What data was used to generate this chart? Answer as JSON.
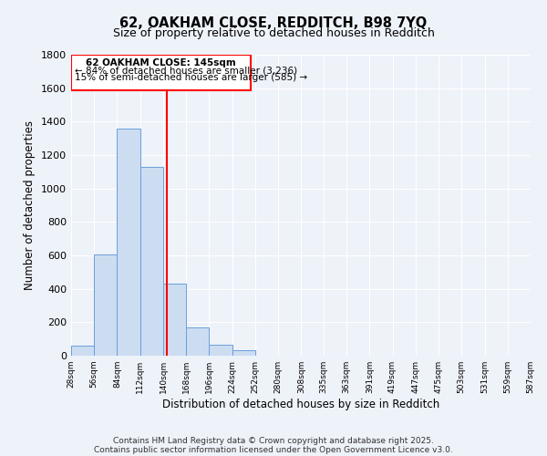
{
  "title_line1": "62, OAKHAM CLOSE, REDDITCH, B98 7YQ",
  "title_line2": "Size of property relative to detached houses in Redditch",
  "xlabel": "Distribution of detached houses by size in Redditch",
  "ylabel": "Number of detached properties",
  "bar_values": [
    60,
    605,
    1360,
    1130,
    430,
    170,
    65,
    35,
    0,
    0,
    0,
    0,
    0,
    0,
    0,
    0,
    0,
    0,
    0,
    0
  ],
  "bin_edges": [
    28,
    56,
    84,
    112,
    140,
    168,
    196,
    224,
    252,
    280,
    308,
    335,
    363,
    391,
    419,
    447,
    475,
    503,
    531,
    559,
    587
  ],
  "tick_labels": [
    "28sqm",
    "56sqm",
    "84sqm",
    "112sqm",
    "140sqm",
    "168sqm",
    "196sqm",
    "224sqm",
    "252sqm",
    "280sqm",
    "308sqm",
    "335sqm",
    "363sqm",
    "391sqm",
    "419sqm",
    "447sqm",
    "475sqm",
    "503sqm",
    "531sqm",
    "559sqm",
    "587sqm"
  ],
  "bar_color": "#ccddf2",
  "bar_edgecolor": "#6a9fd8",
  "ylim": [
    0,
    1800
  ],
  "yticks": [
    0,
    200,
    400,
    600,
    800,
    1000,
    1200,
    1400,
    1600,
    1800
  ],
  "red_line_x": 145,
  "annotation_text_line1": "62 OAKHAM CLOSE: 145sqm",
  "annotation_text_line2": "← 84% of detached houses are smaller (3,236)",
  "annotation_text_line3": "15% of semi-detached houses are larger (585) →",
  "bg_color": "#eef2f9",
  "grid_color": "#ffffff",
  "footer_line1": "Contains HM Land Registry data © Crown copyright and database right 2025.",
  "footer_line2": "Contains public sector information licensed under the Open Government Licence v3.0."
}
